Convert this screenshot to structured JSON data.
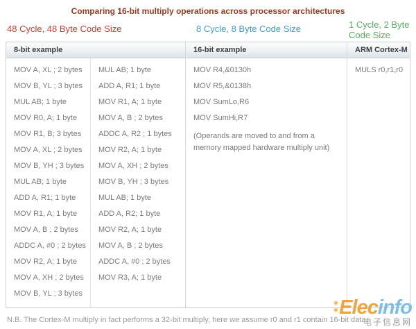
{
  "title": "Comparing 16-bit multiply operations across processor architectures",
  "banners": [
    {
      "label": "48 Cycle, 48 Byte Code Size",
      "color": "#cc3b33"
    },
    {
      "label": "8 Cycle, 8 Byte Code Size",
      "color": "#3d9cc9"
    },
    {
      "label": "1 Cycle, 2 Byte Code Size",
      "color": "#56b05e"
    }
  ],
  "table": {
    "headers": [
      "8-bit example",
      "16-bit example",
      "ARM Cortex-M"
    ],
    "col_8bit_left": [
      "MOV A, XL ; 2 bytes",
      "MOV B, YL ; 3 bytes",
      "MUL AB; 1 byte",
      "MOV R0, A; 1 byte",
      "MOV R1, B; 3 bytes",
      "MOV A, XL ; 2 bytes",
      "MOV B, YH ; 3 bytes",
      "MUL AB; 1 byte",
      "ADD A, R1; 1 byte",
      "MOV R1, A; 1 byte",
      "MOV A, B ; 2 bytes",
      "ADDC A, #0 ; 2 bytes",
      "MOV R2, A; 1 byte",
      "MOV A, XH ; 2 bytes",
      "MOV B, YL ; 3 bytes"
    ],
    "col_8bit_right": [
      "MUL AB; 1 byte",
      "ADD A, R1; 1 byte",
      "MOV R1, A; 1 byte",
      "MOV A, B ; 2 bytes",
      "ADDC A, R2 ; 1 bytes",
      "MOV R2, A; 1 byte",
      "MOV A, XH ; 2 bytes",
      "MOV B, YH ; 3 bytes",
      "MUL AB; 1 byte",
      "ADD A, R2; 1 byte",
      "MOV R2, A; 1 byte",
      "MOV A, B ; 2 bytes",
      "ADDC A, #0 ; 2 bytes",
      "MOV R3, A; 1 byte"
    ],
    "col_16bit": [
      "MOV R4,&0130h",
      "MOV R5,&0138h",
      "MOV SumLo,R6",
      "MOV SumHi,R7"
    ],
    "col_16bit_note": "(Operands are moved to and from a memory mapped hardware multiply unit)",
    "col_arm": [
      "MULS r0,r1,r0"
    ]
  },
  "footnote": "N.B. The Cortex-M multiply in fact performs a 32-bit multiply, here we assume r0 and r1 contain 16-bit data.",
  "watermark": {
    "brand_part1": "Elec",
    "brand_part2": "info",
    "brand_color1": "#f2a33c",
    "brand_color2": "#7bbfe8",
    "subtitle": "电子信息网"
  }
}
